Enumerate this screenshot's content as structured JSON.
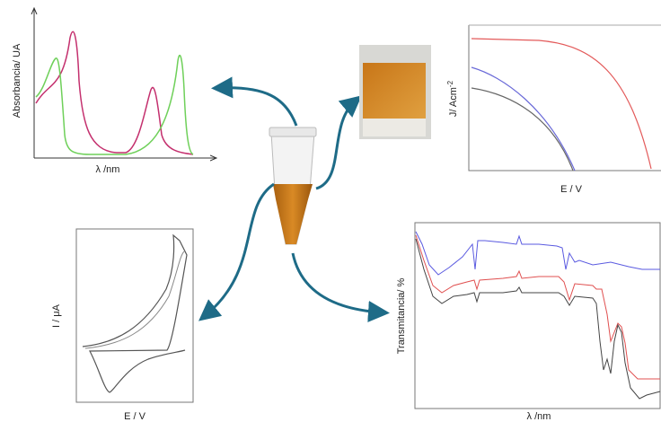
{
  "panels": {
    "absorbance": {
      "y_label": "Absorbancia/ UA",
      "x_label": "λ /nm"
    },
    "jv": {
      "y_label": "J/ Acm",
      "y_label_sup": "-2",
      "x_label": "E / V"
    },
    "cv": {
      "y_label": "I / μA",
      "x_label": "E / V"
    },
    "ftir": {
      "y_label": "Transmitancia/ %",
      "x_label": "λ /nm"
    }
  }
}
